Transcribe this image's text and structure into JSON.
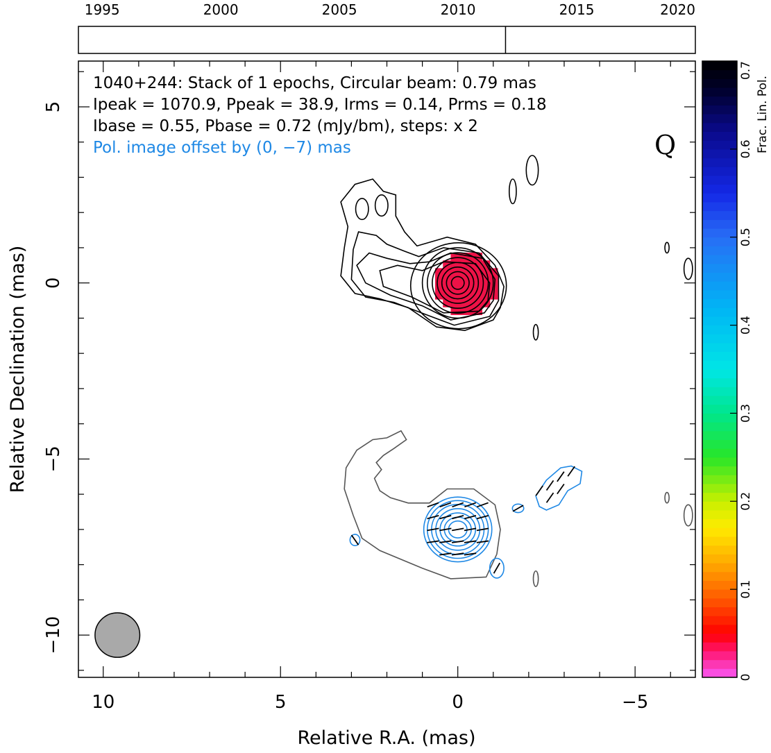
{
  "chart_data": {
    "type": "contour_map",
    "source": "1040+244",
    "xlabel": "Relative R.A. (mas)",
    "ylabel": "Relative Declination (mas)",
    "xlim": [
      10.7,
      -6.7
    ],
    "ylim": [
      -11.2,
      6.3
    ],
    "x_ticks": [
      10,
      5,
      0,
      -5
    ],
    "y_ticks": [
      5,
      0,
      -5,
      -10
    ],
    "x_tick_labels": [
      "10",
      "5",
      "0",
      "−5"
    ],
    "y_tick_labels": [
      "5",
      "0",
      "−5",
      "−10"
    ],
    "info_lines": [
      "1040+244: Stack of 1 epochs, Circular beam: 0.79 mas",
      "Ipeak = 1070.9, Ppeak = 38.9, Irms = 0.14, Prms = 0.18",
      "Ibase = 0.55, Pbase = 0.72 (mJy/bm), steps: x 2"
    ],
    "offset_note": "Pol. image offset by (0, −7) mas",
    "offset_note_color": "#1e88e5",
    "class_label": "Q",
    "values": {
      "stack_epochs": 1,
      "beam_mas": 0.79,
      "ipeak": 1070.9,
      "ppeak": 38.9,
      "irms": 0.14,
      "prms": 0.18,
      "ibase_mJy_bm": 0.55,
      "pbase_mJy_bm": 0.72,
      "contour_step_factor": 2,
      "pol_offset_mas": [
        0,
        -7
      ]
    },
    "beam": {
      "x": 9.6,
      "y": -10.0,
      "diameter_mas": 0.79,
      "color": "#a9a9a9"
    },
    "time_axis": {
      "ticks": [
        1995,
        2000,
        2005,
        2010,
        2015,
        2020
      ],
      "range": [
        1994,
        2020
      ],
      "epochs": [
        2012.0
      ]
    },
    "colorbar": {
      "label": "Frac. Lin. Pol.",
      "range": [
        0,
        0.7
      ],
      "ticks": [
        0,
        0.1,
        0.2,
        0.3,
        0.4,
        0.5,
        0.6,
        0.7
      ],
      "tick_labels": [
        "0",
        "0.1",
        "0.2",
        "0.3",
        "0.4",
        "0.5",
        "0.6",
        "0.7"
      ]
    },
    "core_fill": {
      "x": 0,
      "y": 0,
      "radius_mas": 0.9,
      "frac_pol": 0.04,
      "color": "#ee1247"
    },
    "colors": {
      "total_intensity": "#000000",
      "pol_total_outline": "#555555",
      "pol_contour": "#1e88e5",
      "evpa": "#000000"
    },
    "stokes_i_contours": [
      {
        "type": "circle",
        "x": 0,
        "y": 0,
        "r": [
          0.18,
          0.32,
          0.45,
          0.58,
          0.72,
          0.86,
          1.0
        ]
      },
      {
        "type": "ellipse",
        "x": -0.02,
        "y": -0.08,
        "rx": 1.35,
        "ry": 1.22
      },
      {
        "type": "ellipse",
        "x": -2.1,
        "y": 3.2,
        "rx": 0.17,
        "ry": 0.42
      },
      {
        "type": "ellipse",
        "x": -1.55,
        "y": 2.6,
        "rx": 0.1,
        "ry": 0.35
      },
      {
        "type": "ellipse",
        "x": -5.9,
        "y": 1.0,
        "rx": 0.06,
        "ry": 0.15
      },
      {
        "type": "ellipse",
        "x": -6.5,
        "y": 0.4,
        "rx": 0.12,
        "ry": 0.3
      },
      {
        "type": "ellipse",
        "x": -2.2,
        "y": -1.4,
        "rx": 0.07,
        "ry": 0.22
      },
      {
        "type": "ellipse",
        "x": 2.7,
        "y": 2.1,
        "rx": 0.18,
        "ry": 0.3
      },
      {
        "type": "ellipse",
        "x": 2.15,
        "y": 2.2,
        "rx": 0.18,
        "ry": 0.3
      }
    ],
    "stokes_i_jet_paths": [
      [
        [
          -1.0,
          -1.05
        ],
        [
          -0.2,
          -1.35
        ],
        [
          0.6,
          -1.25
        ],
        [
          1.4,
          -0.7
        ],
        [
          2.2,
          -0.45
        ],
        [
          2.9,
          -0.3
        ],
        [
          3.3,
          0.2
        ],
        [
          3.2,
          1.0
        ],
        [
          3.1,
          1.6
        ],
        [
          3.3,
          2.3
        ],
        [
          2.9,
          2.8
        ],
        [
          2.4,
          2.95
        ],
        [
          2.1,
          2.6
        ],
        [
          1.75,
          2.5
        ],
        [
          1.75,
          1.9
        ],
        [
          1.5,
          1.45
        ],
        [
          1.15,
          1.05
        ],
        [
          0.3,
          1.3
        ],
        [
          -0.5,
          1.1
        ],
        [
          -1.05,
          0.5
        ],
        [
          -1.3,
          -0.1
        ],
        [
          -1.2,
          -0.7
        ],
        [
          -1.0,
          -1.05
        ]
      ],
      [
        [
          -0.9,
          -0.95
        ],
        [
          0.1,
          -1.2
        ],
        [
          0.9,
          -0.9
        ],
        [
          1.8,
          -0.55
        ],
        [
          2.6,
          -0.4
        ],
        [
          3.0,
          0.1
        ],
        [
          2.95,
          0.95
        ],
        [
          2.8,
          1.45
        ],
        [
          2.3,
          1.35
        ],
        [
          2.0,
          1.1
        ],
        [
          1.5,
          0.9
        ],
        [
          1.1,
          0.75
        ],
        [
          0.4,
          1.0
        ],
        [
          -0.6,
          0.85
        ],
        [
          -1.15,
          0.2
        ],
        [
          -1.15,
          -0.5
        ],
        [
          -0.9,
          -0.95
        ]
      ],
      [
        [
          -0.75,
          -0.85
        ],
        [
          0.2,
          -1.05
        ],
        [
          1.0,
          -0.65
        ],
        [
          1.9,
          -0.35
        ],
        [
          2.6,
          0.0
        ],
        [
          2.85,
          0.5
        ],
        [
          2.5,
          0.85
        ],
        [
          2.0,
          0.7
        ],
        [
          1.35,
          0.55
        ],
        [
          0.8,
          0.6
        ],
        [
          0.2,
          0.85
        ],
        [
          -0.7,
          0.7
        ],
        [
          -1.05,
          0.1
        ],
        [
          -1.0,
          -0.5
        ],
        [
          -0.75,
          -0.85
        ]
      ],
      [
        [
          -0.6,
          -0.8
        ],
        [
          0.4,
          -0.85
        ],
        [
          1.3,
          -0.4
        ],
        [
          2.1,
          -0.1
        ],
        [
          2.2,
          0.35
        ],
        [
          1.7,
          0.5
        ],
        [
          1.0,
          0.35
        ],
        [
          0.4,
          0.6
        ],
        [
          -0.5,
          0.55
        ],
        [
          -0.9,
          0.0
        ],
        [
          -0.85,
          -0.5
        ],
        [
          -0.6,
          -0.8
        ]
      ]
    ],
    "pol_outline_paths": [
      [
        [
          -0.8,
          -8.35
        ],
        [
          0.2,
          -8.4
        ],
        [
          1.0,
          -8.1
        ],
        [
          2.2,
          -7.6
        ],
        [
          2.7,
          -7.25
        ],
        [
          2.95,
          -6.6
        ],
        [
          3.2,
          -5.85
        ],
        [
          3.15,
          -5.25
        ],
        [
          2.85,
          -4.75
        ],
        [
          2.4,
          -4.45
        ],
        [
          2.0,
          -4.4
        ],
        [
          1.6,
          -4.2
        ],
        [
          1.45,
          -4.45
        ],
        [
          1.8,
          -4.7
        ],
        [
          2.1,
          -4.9
        ],
        [
          2.3,
          -5.1
        ],
        [
          2.15,
          -5.3
        ],
        [
          2.35,
          -5.55
        ],
        [
          2.2,
          -5.9
        ],
        [
          1.9,
          -6.1
        ],
        [
          1.4,
          -6.25
        ],
        [
          0.8,
          -6.25
        ],
        [
          0.3,
          -5.85
        ],
        [
          -0.45,
          -5.85
        ],
        [
          -1.05,
          -6.3
        ],
        [
          -1.2,
          -7.0
        ],
        [
          -1.1,
          -7.7
        ],
        [
          -0.8,
          -8.35
        ]
      ]
    ],
    "pol_total_contours": [
      {
        "type": "ellipse",
        "x": -5.9,
        "y": -6.1,
        "rx": 0.06,
        "ry": 0.15
      },
      {
        "type": "ellipse",
        "x": -6.5,
        "y": -6.6,
        "rx": 0.12,
        "ry": 0.3
      },
      {
        "type": "ellipse",
        "x": -2.2,
        "y": -8.4,
        "rx": 0.07,
        "ry": 0.22
      }
    ],
    "pol_contours": [
      {
        "type": "ellipse",
        "x": 0,
        "y": -7.0,
        "rx": [
          0.26,
          0.38,
          0.5,
          0.62,
          0.74,
          0.86,
          0.96
        ],
        "ry": [
          0.24,
          0.35,
          0.47,
          0.59,
          0.71,
          0.82,
          0.92
        ]
      },
      {
        "type": "ellipse",
        "x": -1.1,
        "y": -8.1,
        "rx": 0.2,
        "ry": 0.28
      },
      {
        "type": "ellipse",
        "x": -1.7,
        "y": -6.4,
        "rx": 0.16,
        "ry": 0.12
      },
      {
        "type": "ellipse",
        "x": 2.9,
        "y": -7.3,
        "rx": 0.14,
        "ry": 0.16
      },
      {
        "type": "ellipse",
        "x": -6.75,
        "y": -7.9,
        "rx": 0.04,
        "ry": 0.07
      },
      {
        "type": "path",
        "points": [
          [
            -2.2,
            -6.05
          ],
          [
            -2.5,
            -5.6
          ],
          [
            -2.9,
            -5.25
          ],
          [
            -3.2,
            -5.2
          ],
          [
            -3.5,
            -5.35
          ],
          [
            -3.45,
            -5.7
          ],
          [
            -3.1,
            -5.9
          ],
          [
            -2.85,
            -6.3
          ],
          [
            -2.5,
            -6.45
          ],
          [
            -2.3,
            -6.35
          ],
          [
            -2.2,
            -6.05
          ]
        ]
      }
    ],
    "evpa_vectors": {
      "length_mas": 0.34,
      "points": [
        [
          -0.7,
          -6.3,
          20
        ],
        [
          -0.35,
          -6.3,
          20
        ],
        [
          0.0,
          -6.3,
          20
        ],
        [
          0.35,
          -6.3,
          20
        ],
        [
          0.7,
          -6.3,
          20
        ],
        [
          -0.7,
          -6.65,
          15
        ],
        [
          -0.35,
          -6.65,
          15
        ],
        [
          0.0,
          -6.65,
          15
        ],
        [
          0.35,
          -6.65,
          15
        ],
        [
          0.7,
          -6.65,
          15
        ],
        [
          -0.7,
          -7.0,
          10
        ],
        [
          -0.35,
          -7.0,
          10
        ],
        [
          0.0,
          -7.0,
          10
        ],
        [
          0.35,
          -7.0,
          10
        ],
        [
          0.7,
          -7.0,
          10
        ],
        [
          -0.7,
          -7.35,
          8
        ],
        [
          -0.35,
          -7.35,
          8
        ],
        [
          0.0,
          -7.35,
          8
        ],
        [
          0.35,
          -7.35,
          8
        ],
        [
          0.7,
          -7.35,
          8
        ],
        [
          -0.35,
          -7.7,
          8
        ],
        [
          0.0,
          -7.7,
          8
        ],
        [
          0.35,
          -7.7,
          8
        ],
        [
          -1.1,
          -8.1,
          60
        ],
        [
          -1.7,
          -6.4,
          30
        ],
        [
          2.9,
          -7.3,
          -55
        ],
        [
          -2.3,
          -5.9,
          55
        ],
        [
          -2.6,
          -5.75,
          55
        ],
        [
          -2.9,
          -5.5,
          55
        ],
        [
          -3.2,
          -5.35,
          55
        ],
        [
          -2.6,
          -6.1,
          55
        ],
        [
          -2.9,
          -5.85,
          55
        ]
      ]
    }
  }
}
